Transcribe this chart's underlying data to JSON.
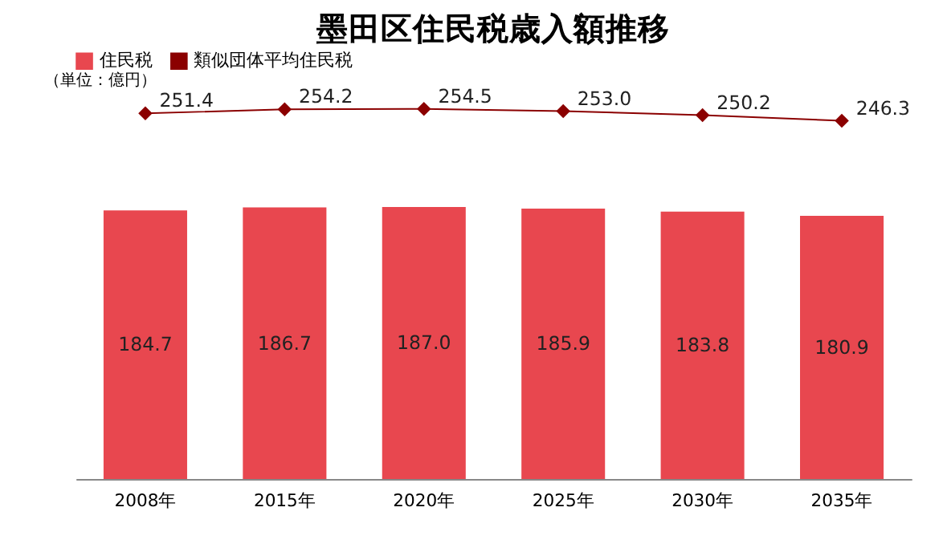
{
  "chart_data": {
    "type": "bar",
    "title": "墨田区住民税歳入額推移",
    "categories": [
      "2008年",
      "2015年",
      "2020年",
      "2025年",
      "2030年",
      "2035年"
    ],
    "series": [
      {
        "name": "住民税",
        "color": "#e8474f",
        "values": [
          184.7,
          186.7,
          187.0,
          185.9,
          183.8,
          180.9
        ],
        "value_labels": [
          "184.7",
          "186.7",
          "187.0",
          "185.9",
          "183.8",
          "180.9"
        ]
      },
      {
        "name": "類似団体平均住民税",
        "type": "line",
        "color": "#8b0000",
        "marker": "diamond",
        "values": [
          251.4,
          254.2,
          254.5,
          253.0,
          250.2,
          246.3
        ],
        "value_labels": [
          "251.4",
          "254.2",
          "254.5",
          "253.0",
          "250.2",
          "246.3"
        ]
      }
    ],
    "annotations": [
      "（単位：億円）"
    ],
    "legend": "top",
    "tick_labels": "x"
  }
}
